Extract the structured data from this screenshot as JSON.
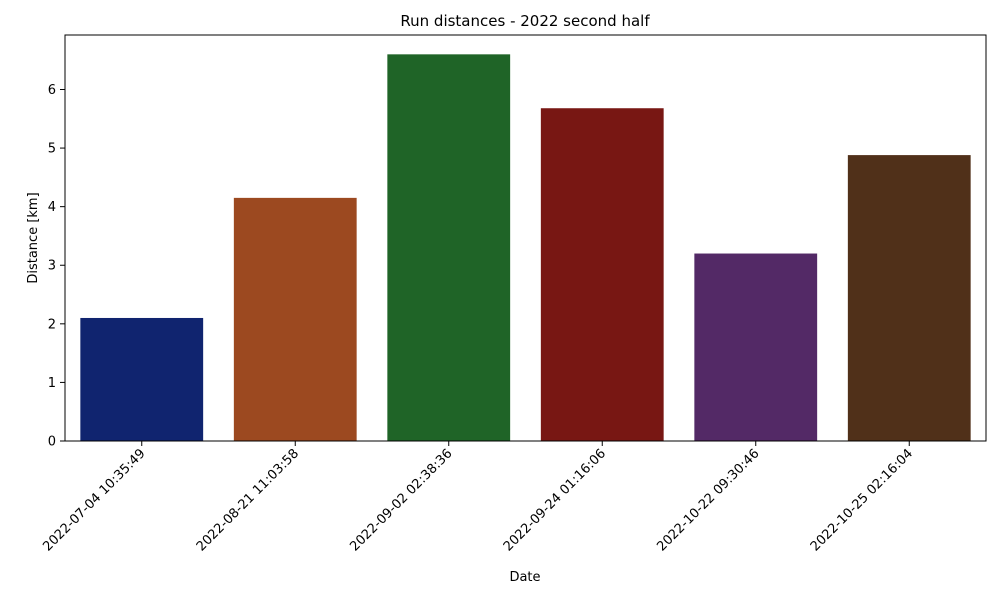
{
  "chart_data": {
    "type": "bar",
    "title": "Run distances - 2022 second half",
    "xlabel": "Date",
    "ylabel": "Distance [km]",
    "categories": [
      "2022-07-04 10:35:49",
      "2022-08-21 11:03:58",
      "2022-09-02 02:38:36",
      "2022-09-24 01:16:06",
      "2022-10-22 09:30:46",
      "2022-10-25 02:16:04"
    ],
    "values": [
      2.1,
      4.15,
      6.6,
      5.68,
      3.2,
      4.88
    ],
    "colors": [
      "#10246f",
      "#9c4920",
      "#1f6427",
      "#781713",
      "#532966",
      "#503019"
    ],
    "ylim": [
      0,
      6.93
    ],
    "yticks": [
      0,
      1,
      2,
      3,
      4,
      5,
      6
    ],
    "grid": false,
    "legend": "none"
  }
}
